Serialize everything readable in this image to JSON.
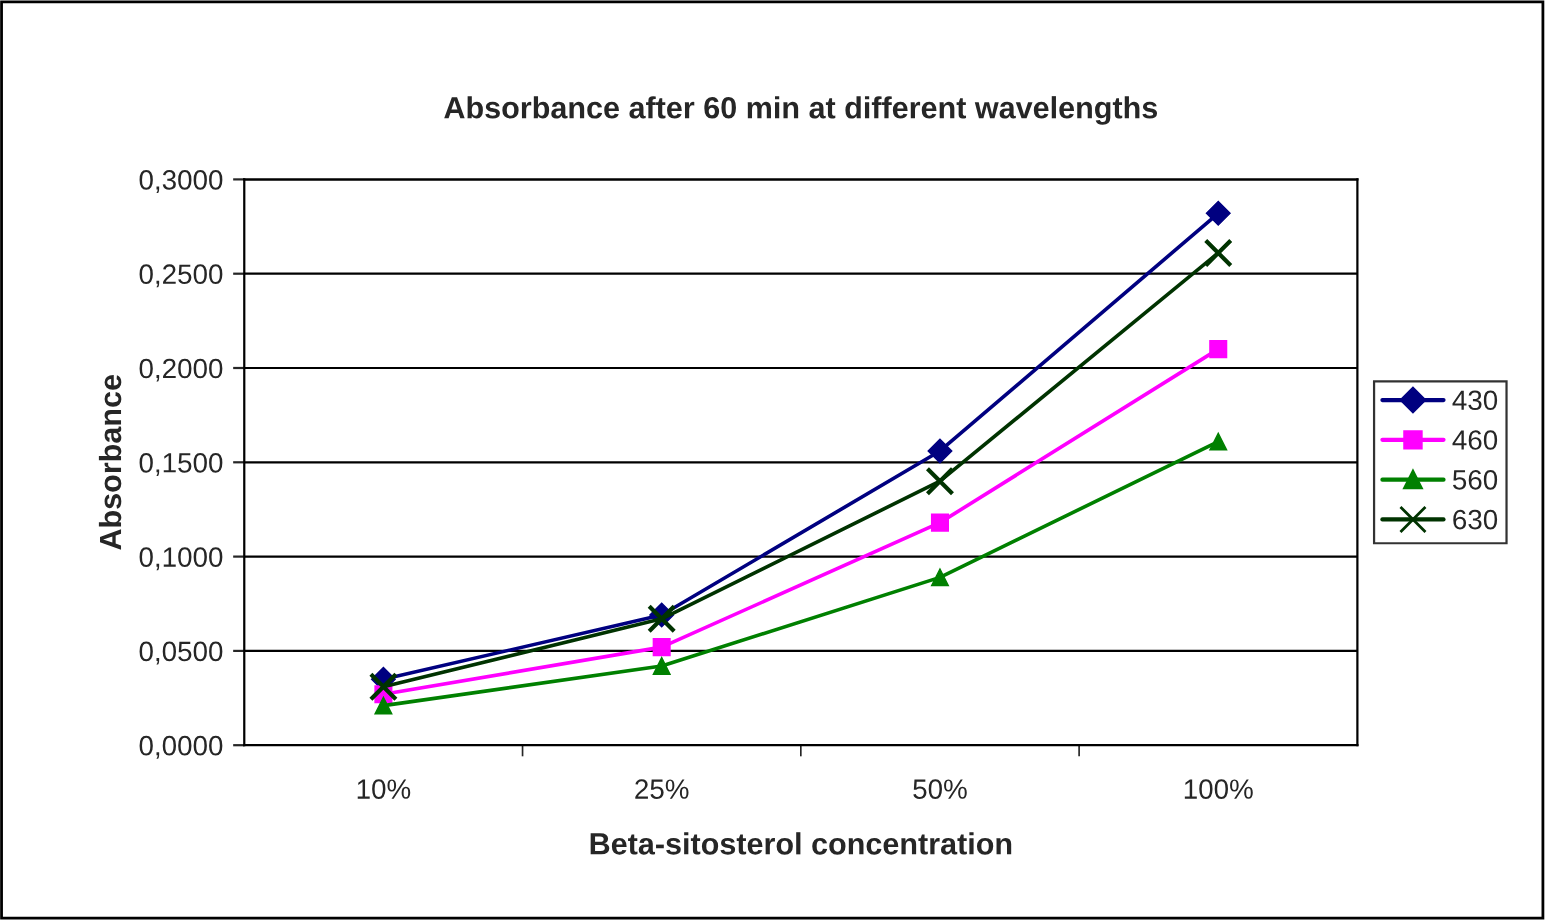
{
  "chart_data": {
    "type": "line",
    "title": "Absorbance after 60 min at different wavelengths",
    "xlabel": "Beta-sitosterol concentration",
    "ylabel": "Absorbance",
    "categories": [
      "10%",
      "25%",
      "50%",
      "100%"
    ],
    "series": [
      {
        "name": "430",
        "color": "#000080",
        "marker": "diamond",
        "values": [
          0.035,
          0.069,
          0.156,
          0.282
        ]
      },
      {
        "name": "460",
        "color": "#ff00ff",
        "marker": "square",
        "values": [
          0.027,
          0.052,
          0.118,
          0.21
        ]
      },
      {
        "name": "560",
        "color": "#008000",
        "marker": "triangle",
        "values": [
          0.021,
          0.042,
          0.089,
          0.161
        ]
      },
      {
        "name": "630",
        "color": "#003300",
        "marker": "cross",
        "values": [
          0.031,
          0.067,
          0.14,
          0.261
        ]
      }
    ],
    "ylim": [
      0,
      0.3
    ],
    "yticks": [
      {
        "value": 0,
        "label": "0,0000"
      },
      {
        "value": 0.05,
        "label": "0,0500"
      },
      {
        "value": 0.1,
        "label": "0,1000"
      },
      {
        "value": 0.15,
        "label": "0,1500"
      },
      {
        "value": 0.2,
        "label": "0,2000"
      },
      {
        "value": 0.25,
        "label": "0,2500"
      },
      {
        "value": 0.3,
        "label": "0,3000"
      }
    ],
    "grid": "y",
    "legend": "right",
    "line_style": "solid"
  }
}
